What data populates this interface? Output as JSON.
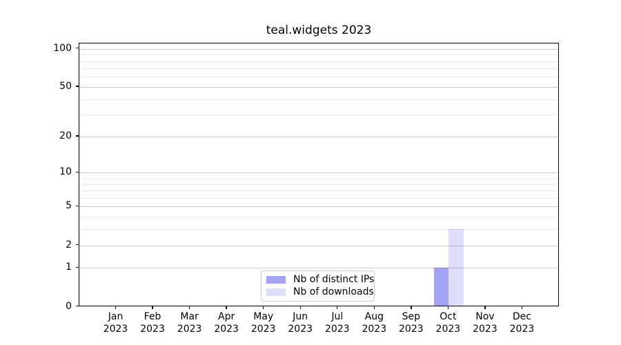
{
  "chart_data": {
    "type": "bar",
    "title": "teal.widgets 2023",
    "categories": [
      "Jan",
      "Feb",
      "Mar",
      "Apr",
      "May",
      "Jun",
      "Jul",
      "Aug",
      "Sep",
      "Oct",
      "Nov",
      "Dec"
    ],
    "year_label": "2023",
    "series": [
      {
        "name": "Nb of distinct IPs",
        "color": "#0000e65c",
        "values": [
          0,
          0,
          0,
          0,
          0,
          0,
          0,
          0,
          0,
          1,
          0,
          0
        ]
      },
      {
        "name": "Nb of downloads",
        "color": "#0000e621",
        "values": [
          0,
          0,
          0,
          0,
          0,
          0,
          0,
          0,
          0,
          3,
          0,
          0
        ]
      }
    ],
    "y_axis": {
      "scale": "log10(1+v)",
      "ticks": [
        0,
        1,
        2,
        5,
        10,
        20,
        50,
        100
      ],
      "minor_ticks": [
        3,
        4,
        6,
        7,
        8,
        9,
        30,
        40,
        60,
        70,
        80,
        90
      ],
      "max": 110
    },
    "grid": {
      "major_color": "#cbcbcb",
      "minor_color": "#e9e9e9"
    },
    "axis_color": "#000000",
    "background_color": "#ffffff",
    "legend": {
      "position": "lower-center",
      "border_color": "#cccccc"
    }
  }
}
